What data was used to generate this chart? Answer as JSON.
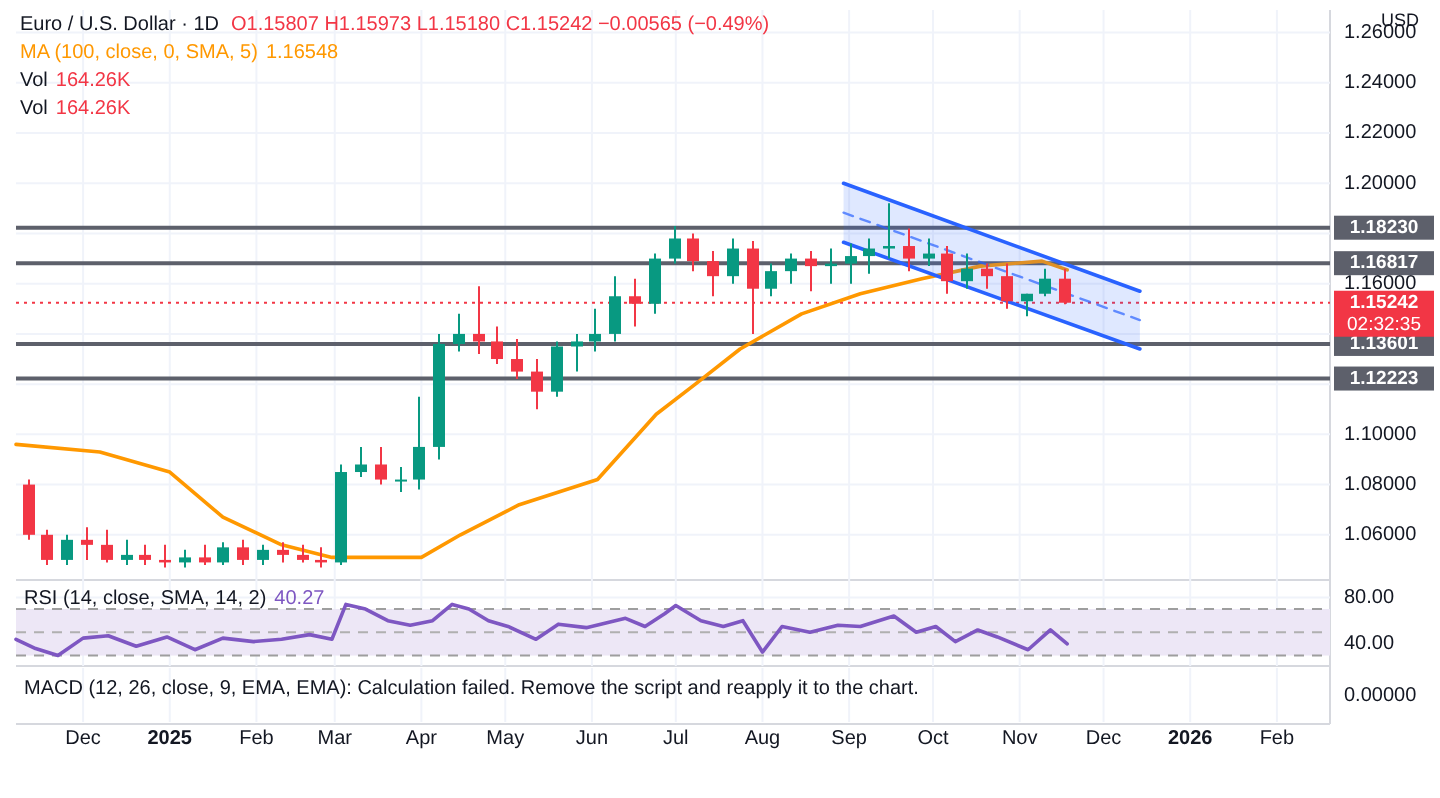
{
  "chart_data": [
    {
      "type": "candlestick",
      "title": "Euro / U.S. Dollar · 1D",
      "subtitle": "O1.15807 H1.15973 L1.15180 C1.15242 −0.00565 (−0.49%)",
      "annotations": [
        "1.16548",
        "Vol 164.26K",
        "Vol 164.26K",
        "USD",
        "02:32:35"
      ],
      "x": [
        "2024-11-11",
        "2024-11-18",
        "2024-11-25",
        "2024-12-02",
        "2024-12-09",
        "2024-12-16",
        "2024-12-23",
        "2024-12-30",
        "2025-01-06",
        "2025-01-13",
        "2025-01-20",
        "2025-01-27",
        "2025-02-03",
        "2025-02-10",
        "2025-02-17",
        "2025-02-24",
        "2025-03-03",
        "2025-03-10",
        "2025-03-17",
        "2025-03-24",
        "2025-03-31",
        "2025-04-07",
        "2025-04-14",
        "2025-04-21",
        "2025-04-28",
        "2025-05-05",
        "2025-05-12",
        "2025-05-19",
        "2025-05-26",
        "2025-06-02",
        "2025-06-09",
        "2025-06-16",
        "2025-06-23",
        "2025-06-30",
        "2025-07-07",
        "2025-07-14",
        "2025-07-21",
        "2025-07-28",
        "2025-08-04",
        "2025-08-11",
        "2025-08-18",
        "2025-08-25",
        "2025-09-01",
        "2025-09-08",
        "2025-09-15",
        "2025-09-22",
        "2025-09-29",
        "2025-10-06",
        "2025-10-13",
        "2025-10-20",
        "2025-10-27",
        "2025-11-03",
        "2025-11-10",
        "2025-11-17"
      ],
      "ohlc": [
        [
          1.08,
          1.082,
          1.058,
          1.06
        ],
        [
          1.06,
          1.062,
          1.048,
          1.05
        ],
        [
          1.05,
          1.06,
          1.048,
          1.058
        ],
        [
          1.058,
          1.063,
          1.05,
          1.056
        ],
        [
          1.056,
          1.062,
          1.049,
          1.05
        ],
        [
          1.05,
          1.058,
          1.048,
          1.052
        ],
        [
          1.052,
          1.056,
          1.048,
          1.05
        ],
        [
          1.05,
          1.056,
          1.047,
          1.049
        ],
        [
          1.049,
          1.054,
          1.047,
          1.051
        ],
        [
          1.051,
          1.056,
          1.048,
          1.049
        ],
        [
          1.049,
          1.057,
          1.048,
          1.055
        ],
        [
          1.055,
          1.058,
          1.048,
          1.05
        ],
        [
          1.05,
          1.056,
          1.048,
          1.054
        ],
        [
          1.054,
          1.057,
          1.049,
          1.052
        ],
        [
          1.052,
          1.056,
          1.049,
          1.05
        ],
        [
          1.05,
          1.055,
          1.047,
          1.049
        ],
        [
          1.049,
          1.088,
          1.048,
          1.085
        ],
        [
          1.085,
          1.095,
          1.083,
          1.088
        ],
        [
          1.088,
          1.095,
          1.08,
          1.082
        ],
        [
          1.082,
          1.087,
          1.077,
          1.082
        ],
        [
          1.082,
          1.115,
          1.078,
          1.095
        ],
        [
          1.095,
          1.14,
          1.09,
          1.136
        ],
        [
          1.136,
          1.148,
          1.133,
          1.14
        ],
        [
          1.14,
          1.159,
          1.132,
          1.137
        ],
        [
          1.137,
          1.143,
          1.128,
          1.13
        ],
        [
          1.13,
          1.138,
          1.122,
          1.125
        ],
        [
          1.125,
          1.13,
          1.11,
          1.117
        ],
        [
          1.117,
          1.137,
          1.115,
          1.135
        ],
        [
          1.135,
          1.14,
          1.125,
          1.137
        ],
        [
          1.137,
          1.15,
          1.133,
          1.14
        ],
        [
          1.14,
          1.163,
          1.137,
          1.155
        ],
        [
          1.155,
          1.162,
          1.143,
          1.152
        ],
        [
          1.152,
          1.172,
          1.148,
          1.17
        ],
        [
          1.17,
          1.183,
          1.168,
          1.178
        ],
        [
          1.178,
          1.18,
          1.165,
          1.169
        ],
        [
          1.169,
          1.173,
          1.155,
          1.163
        ],
        [
          1.163,
          1.178,
          1.16,
          1.174
        ],
        [
          1.174,
          1.177,
          1.14,
          1.158
        ],
        [
          1.158,
          1.168,
          1.155,
          1.165
        ],
        [
          1.165,
          1.172,
          1.16,
          1.17
        ],
        [
          1.17,
          1.173,
          1.157,
          1.167
        ],
        [
          1.167,
          1.174,
          1.16,
          1.168
        ],
        [
          1.168,
          1.176,
          1.16,
          1.171
        ],
        [
          1.171,
          1.178,
          1.164,
          1.174
        ],
        [
          1.174,
          1.192,
          1.17,
          1.175
        ],
        [
          1.175,
          1.182,
          1.165,
          1.17
        ],
        [
          1.17,
          1.178,
          1.167,
          1.172
        ],
        [
          1.172,
          1.175,
          1.156,
          1.161
        ],
        [
          1.161,
          1.172,
          1.158,
          1.166
        ],
        [
          1.166,
          1.168,
          1.158,
          1.163
        ],
        [
          1.163,
          1.168,
          1.15,
          1.153
        ],
        [
          1.153,
          1.156,
          1.147,
          1.156
        ],
        [
          1.156,
          1.166,
          1.155,
          1.162
        ],
        [
          1.162,
          1.166,
          1.1518,
          1.15242
        ]
      ],
      "series": [
        {
          "type": "line",
          "name": "MA (100, close, 0, SMA, 5)",
          "color": "#ff9800",
          "x": [
            "2024-11-07",
            "2024-12-07",
            "2025-01-01",
            "2025-01-20",
            "2025-02-10",
            "2025-02-28",
            "2025-04-01",
            "2025-04-15",
            "2025-05-06",
            "2025-06-03",
            "2025-06-24",
            "2025-07-08",
            "2025-07-24",
            "2025-08-15",
            "2025-09-05",
            "2025-09-27",
            "2025-10-18",
            "2025-11-09",
            "2025-11-18"
          ],
          "values": [
            1.096,
            1.093,
            1.085,
            1.067,
            1.056,
            1.051,
            1.051,
            1.06,
            1.072,
            1.082,
            1.108,
            1.12,
            1.134,
            1.148,
            1.156,
            1.162,
            1.167,
            1.169,
            1.1655
          ]
        },
        {
          "type": "line",
          "color": "#2962ff",
          "line_style": "dashed",
          "x": [
            "2025-08-30",
            "2025-12-14"
          ],
          "values": [
            1.1883,
            1.1455
          ],
          "lower": [
            1.1765,
            1.134
          ],
          "upper": [
            1.2,
            1.157
          ]
        },
        {
          "type": "line",
          "color": "#2962ff",
          "x": [
            "2025-08-30",
            "2025-12-14"
          ],
          "values": [
            1.2,
            1.157
          ]
        },
        {
          "type": "line",
          "color": "#2962ff",
          "x": [
            "2025-08-30",
            "2025-12-14"
          ],
          "values": [
            1.1765,
            1.134
          ]
        }
      ],
      "xlim": [
        "2024-11-07",
        "2026-02-20"
      ],
      "xticks": [
        {
          "value": "2024-12-01",
          "label": null
        },
        {
          "value": "2025-01-01",
          "label": null
        },
        {
          "value": "2025-02-01",
          "label": null
        },
        {
          "value": "2025-03-01",
          "label": null
        },
        {
          "value": "2025-04-01",
          "label": null
        },
        {
          "value": "2025-05-01",
          "label": null
        },
        {
          "value": "2025-06-01",
          "label": null
        },
        {
          "value": "2025-07-01",
          "label": null
        },
        {
          "value": "2025-08-01",
          "label": null
        },
        {
          "value": "2025-09-01",
          "label": null
        },
        {
          "value": "2025-10-01",
          "label": null
        },
        {
          "value": "2025-11-01",
          "label": null
        },
        {
          "value": "2025-12-01",
          "label": null
        },
        {
          "value": "2026-01-01",
          "label": null
        },
        {
          "value": "2026-02-01",
          "label": null
        }
      ],
      "ylim": [
        1.042,
        1.269
      ],
      "yticks": [
        {
          "value": 1.06,
          "label": "1.06000"
        },
        {
          "value": 1.08,
          "label": "1.08000"
        },
        {
          "value": 1.1,
          "label": "1.10000"
        },
        {
          "value": 1.12,
          "label": null
        },
        {
          "value": 1.14,
          "label": null
        },
        {
          "value": 1.16,
          "label": "1.16000"
        },
        {
          "value": 1.18,
          "label": null
        },
        {
          "value": 1.2,
          "label": "1.20000"
        },
        {
          "value": 1.22,
          "label": "1.22000"
        },
        {
          "value": 1.24,
          "label": "1.24000"
        },
        {
          "value": 1.26,
          "label": "1.26000"
        }
      ],
      "ref_lines": [
        {
          "axis": "y",
          "value": 1.1823,
          "label": "1.18230",
          "color": "#5d606b"
        },
        {
          "axis": "y",
          "value": 1.16817,
          "label": "1.16817",
          "color": "#5d606b"
        },
        {
          "axis": "y",
          "value": 1.13601,
          "label": "1.13601",
          "color": "#5d606b"
        },
        {
          "axis": "y",
          "value": 1.12223,
          "label": "1.12223",
          "color": "#5d606b"
        },
        {
          "axis": "y",
          "value": 1.15242,
          "label": "1.15242",
          "color": "#f23645",
          "line_style": "dotted"
        }
      ],
      "grid": true,
      "legend": "top left",
      "tick_labels": "y"
    },
    {
      "type": "line",
      "title": "RSI (14, close, SMA, 14, 2)",
      "annotations": [
        "40.27",
        "MACD (12, 26, close, 9, EMA, EMA): Calculation failed. Remove the script and reapply it to the chart.",
        "0.00000"
      ],
      "x": [
        "2024-11-07",
        "2024-11-14",
        "2024-11-22",
        "2024-12-01",
        "2024-12-10",
        "2024-12-20",
        "2024-12-31",
        "2025-01-10",
        "2025-01-20",
        "2025-01-31",
        "2025-02-10",
        "2025-02-20",
        "2025-02-28",
        "2025-03-05",
        "2025-03-12",
        "2025-03-20",
        "2025-03-28",
        "2025-04-05",
        "2025-04-12",
        "2025-04-18",
        "2025-04-25",
        "2025-05-02",
        "2025-05-12",
        "2025-05-20",
        "2025-05-30",
        "2025-06-06",
        "2025-06-13",
        "2025-06-20",
        "2025-06-27",
        "2025-07-01",
        "2025-07-10",
        "2025-07-18",
        "2025-07-25",
        "2025-08-01",
        "2025-08-08",
        "2025-08-18",
        "2025-08-28",
        "2025-09-05",
        "2025-09-17",
        "2025-09-25",
        "2025-10-02",
        "2025-10-09",
        "2025-10-17",
        "2025-10-24",
        "2025-11-04",
        "2025-11-12",
        "2025-11-18"
      ],
      "series": [
        {
          "color": "#7e57c2",
          "values": [
            44,
            36,
            30,
            45,
            47,
            38,
            46,
            35,
            45,
            42,
            44,
            48,
            44,
            74,
            70,
            60,
            56,
            60,
            74,
            70,
            60,
            55,
            44,
            57,
            54,
            58,
            62,
            55,
            66,
            73,
            60,
            55,
            60,
            33,
            55,
            50,
            56,
            55,
            64,
            50,
            55,
            42,
            52,
            46,
            35,
            52,
            40
          ]
        }
      ],
      "xlim": [
        "2024-11-07",
        "2026-02-20"
      ],
      "xticks": [
        {
          "value": "2024-12-01",
          "label": "Dec"
        },
        {
          "value": "2025-01-01",
          "label": "2025"
        },
        {
          "value": "2025-02-01",
          "label": "Feb"
        },
        {
          "value": "2025-03-01",
          "label": "Mar"
        },
        {
          "value": "2025-04-01",
          "label": "Apr"
        },
        {
          "value": "2025-05-01",
          "label": "May"
        },
        {
          "value": "2025-06-01",
          "label": "Jun"
        },
        {
          "value": "2025-07-01",
          "label": "Jul"
        },
        {
          "value": "2025-08-01",
          "label": "Aug"
        },
        {
          "value": "2025-09-01",
          "label": "Sep"
        },
        {
          "value": "2025-10-01",
          "label": "Oct"
        },
        {
          "value": "2025-11-01",
          "label": "Nov"
        },
        {
          "value": "2025-12-01",
          "label": "Dec"
        },
        {
          "value": "2026-01-01",
          "label": "2026"
        },
        {
          "value": "2026-02-01",
          "label": "Feb"
        }
      ],
      "ylim": [
        21,
        95
      ],
      "yticks": [
        {
          "value": 80,
          "label": "80.00"
        },
        {
          "value": 40,
          "label": "40.00"
        }
      ],
      "bands": [
        {
          "axis": "y",
          "from": 30,
          "to": 70,
          "color": "#ede7f6"
        }
      ],
      "ref_lines": [
        {
          "axis": "y",
          "value": 70,
          "color": "#9e9e9e",
          "line_style": "dashed"
        },
        {
          "axis": "y",
          "value": 50,
          "color": "#b0b0b0",
          "line_style": "dashed"
        },
        {
          "axis": "y",
          "value": 30,
          "color": "#9e9e9e",
          "line_style": "dashed"
        }
      ],
      "grid": true
    }
  ]
}
